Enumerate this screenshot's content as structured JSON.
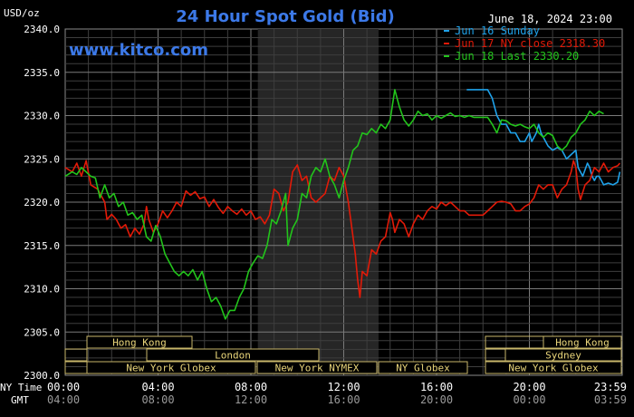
{
  "chart_data": {
    "type": "line",
    "title": "24 Hour Spot Gold (Bid)",
    "date_label": "June 18, 2024 23:00",
    "unit_label": "USD/oz",
    "watermark": "www.kitco.com",
    "ylim": [
      2300,
      2340
    ],
    "y_ticks": [
      "2300.0",
      "2305.0",
      "2310.0",
      "2315.0",
      "2320.0",
      "2325.0",
      "2330.0",
      "2335.0",
      "2340.0"
    ],
    "x_hours": [
      0,
      4,
      8,
      12,
      16,
      20,
      24
    ],
    "x_tick_labels": [
      "00:00",
      "04:00",
      "08:00",
      "12:00",
      "16:00",
      "20:00",
      "23:59"
    ],
    "gmt_tick_labels": [
      "04:00",
      "08:00",
      "12:00",
      "16:00",
      "20:00",
      "00:00",
      "03:59"
    ],
    "ny_time_label": "NY Time",
    "gmt_label": "GMT",
    "grid": true,
    "legend_position": "top-right",
    "shaded_window_hours": [
      8.3,
      13.5
    ],
    "series": [
      {
        "name": "Jun 16 Sunday",
        "color": "#1fa2ea",
        "points": [
          [
            17.3,
            2333
          ],
          [
            18.2,
            2333
          ],
          [
            18.4,
            2332
          ],
          [
            18.6,
            2330
          ],
          [
            18.8,
            2329
          ],
          [
            19.0,
            2329
          ],
          [
            19.2,
            2328
          ],
          [
            19.4,
            2328
          ],
          [
            19.6,
            2327
          ],
          [
            19.8,
            2327
          ],
          [
            20.0,
            2328
          ],
          [
            20.1,
            2327
          ],
          [
            20.3,
            2328
          ],
          [
            20.4,
            2329
          ],
          [
            20.5,
            2328
          ],
          [
            20.6,
            2327.5
          ],
          [
            20.8,
            2326.5
          ],
          [
            21.0,
            2326
          ],
          [
            21.2,
            2326.3
          ],
          [
            21.4,
            2326
          ],
          [
            21.6,
            2325
          ],
          [
            21.8,
            2325.5
          ],
          [
            22.0,
            2326
          ],
          [
            22.1,
            2324
          ],
          [
            22.3,
            2323
          ],
          [
            22.5,
            2324.5
          ],
          [
            22.6,
            2324
          ],
          [
            22.7,
            2323
          ],
          [
            22.8,
            2322.5
          ],
          [
            22.9,
            2323
          ],
          [
            23.0,
            2323
          ],
          [
            23.2,
            2322
          ],
          [
            23.4,
            2322.2
          ],
          [
            23.6,
            2322
          ],
          [
            23.8,
            2322.3
          ],
          [
            23.9,
            2323.5
          ]
        ]
      },
      {
        "name": "Jun 17 NY close 2318.30",
        "color": "#e21a08",
        "points": [
          [
            0.0,
            2324
          ],
          [
            0.3,
            2323.5
          ],
          [
            0.5,
            2324.5
          ],
          [
            0.7,
            2323
          ],
          [
            0.9,
            2324.8
          ],
          [
            1.1,
            2322
          ],
          [
            1.4,
            2321.5
          ],
          [
            1.7,
            2320
          ],
          [
            1.8,
            2318
          ],
          [
            2.0,
            2318.6
          ],
          [
            2.2,
            2318
          ],
          [
            2.4,
            2317
          ],
          [
            2.6,
            2317.4
          ],
          [
            2.8,
            2316
          ],
          [
            3.0,
            2317
          ],
          [
            3.2,
            2316.3
          ],
          [
            3.4,
            2317.5
          ],
          [
            3.5,
            2319.5
          ],
          [
            3.6,
            2318
          ],
          [
            3.8,
            2316.5
          ],
          [
            4.0,
            2317.5
          ],
          [
            4.2,
            2319
          ],
          [
            4.4,
            2318.2
          ],
          [
            4.6,
            2319
          ],
          [
            4.8,
            2320
          ],
          [
            5.0,
            2319.5
          ],
          [
            5.2,
            2321.3
          ],
          [
            5.4,
            2320.8
          ],
          [
            5.6,
            2321.2
          ],
          [
            5.8,
            2320.4
          ],
          [
            6.0,
            2320.6
          ],
          [
            6.2,
            2319.5
          ],
          [
            6.4,
            2320.3
          ],
          [
            6.6,
            2319.4
          ],
          [
            6.8,
            2318.7
          ],
          [
            7.0,
            2319.5
          ],
          [
            7.2,
            2319
          ],
          [
            7.4,
            2318.6
          ],
          [
            7.6,
            2319.2
          ],
          [
            7.8,
            2318.5
          ],
          [
            8.0,
            2319
          ],
          [
            8.2,
            2318
          ],
          [
            8.4,
            2318.3
          ],
          [
            8.6,
            2317.5
          ],
          [
            8.8,
            2318.5
          ],
          [
            9.0,
            2321.5
          ],
          [
            9.2,
            2321
          ],
          [
            9.4,
            2319
          ],
          [
            9.6,
            2320
          ],
          [
            9.8,
            2323.5
          ],
          [
            10.0,
            2324.3
          ],
          [
            10.2,
            2322.5
          ],
          [
            10.4,
            2323
          ],
          [
            10.6,
            2320.5
          ],
          [
            10.8,
            2320
          ],
          [
            11.0,
            2320.5
          ],
          [
            11.2,
            2321
          ],
          [
            11.4,
            2323
          ],
          [
            11.6,
            2322.5
          ],
          [
            11.8,
            2324
          ],
          [
            12.0,
            2323
          ],
          [
            12.2,
            2320
          ],
          [
            12.3,
            2318
          ],
          [
            12.5,
            2314
          ],
          [
            12.6,
            2311
          ],
          [
            12.7,
            2309
          ],
          [
            12.8,
            2312
          ],
          [
            13.0,
            2311.5
          ],
          [
            13.2,
            2314.5
          ],
          [
            13.4,
            2314
          ],
          [
            13.6,
            2315.5
          ],
          [
            13.8,
            2316
          ],
          [
            14.0,
            2318.8
          ],
          [
            14.1,
            2318
          ],
          [
            14.2,
            2316.5
          ],
          [
            14.4,
            2318
          ],
          [
            14.6,
            2317.5
          ],
          [
            14.8,
            2316
          ],
          [
            15.0,
            2317.5
          ],
          [
            15.2,
            2318.5
          ],
          [
            15.4,
            2318
          ],
          [
            15.6,
            2319
          ],
          [
            15.8,
            2319.5
          ],
          [
            16.0,
            2319.2
          ],
          [
            16.2,
            2320
          ],
          [
            16.4,
            2319.6
          ],
          [
            16.6,
            2320
          ],
          [
            16.8,
            2319.5
          ],
          [
            17.0,
            2319
          ],
          [
            17.2,
            2319
          ],
          [
            17.4,
            2318.5
          ],
          [
            17.6,
            2318.5
          ],
          [
            17.8,
            2318.5
          ],
          [
            18.0,
            2318.5
          ],
          [
            18.2,
            2319
          ],
          [
            18.4,
            2319.5
          ],
          [
            18.6,
            2320
          ],
          [
            18.8,
            2320.1
          ],
          [
            19.0,
            2320
          ],
          [
            19.2,
            2319.8
          ],
          [
            19.4,
            2319
          ],
          [
            19.6,
            2319
          ],
          [
            19.8,
            2319.5
          ],
          [
            20.0,
            2319.8
          ],
          [
            20.2,
            2320.5
          ],
          [
            20.4,
            2322
          ],
          [
            20.6,
            2321.5
          ],
          [
            20.8,
            2322
          ],
          [
            21.0,
            2322
          ],
          [
            21.2,
            2320.5
          ],
          [
            21.4,
            2321.5
          ],
          [
            21.6,
            2322
          ],
          [
            21.8,
            2323.5
          ],
          [
            21.9,
            2324.8
          ],
          [
            22.0,
            2324
          ],
          [
            22.1,
            2321.5
          ],
          [
            22.2,
            2320.3
          ],
          [
            22.4,
            2322
          ],
          [
            22.6,
            2322.5
          ],
          [
            22.8,
            2324
          ],
          [
            23.0,
            2323.5
          ],
          [
            23.2,
            2324.5
          ],
          [
            23.4,
            2323.5
          ],
          [
            23.6,
            2324
          ],
          [
            23.8,
            2324.2
          ],
          [
            23.9,
            2324.5
          ]
        ]
      },
      {
        "name": "Jun 18 Last 2330.20",
        "color": "#22c41b",
        "points": [
          [
            0.0,
            2323
          ],
          [
            0.3,
            2323.5
          ],
          [
            0.5,
            2323.2
          ],
          [
            0.7,
            2324
          ],
          [
            0.9,
            2323.5
          ],
          [
            1.1,
            2323
          ],
          [
            1.3,
            2322.8
          ],
          [
            1.5,
            2320.5
          ],
          [
            1.7,
            2322
          ],
          [
            1.9,
            2320.5
          ],
          [
            2.1,
            2321
          ],
          [
            2.3,
            2319.5
          ],
          [
            2.5,
            2320
          ],
          [
            2.7,
            2318.5
          ],
          [
            2.9,
            2318.8
          ],
          [
            3.1,
            2318
          ],
          [
            3.3,
            2318.5
          ],
          [
            3.5,
            2316
          ],
          [
            3.7,
            2315.5
          ],
          [
            3.9,
            2317.3
          ],
          [
            4.1,
            2316
          ],
          [
            4.3,
            2314
          ],
          [
            4.5,
            2313
          ],
          [
            4.7,
            2312
          ],
          [
            4.9,
            2311.5
          ],
          [
            5.1,
            2312
          ],
          [
            5.3,
            2311.5
          ],
          [
            5.5,
            2312.2
          ],
          [
            5.7,
            2311
          ],
          [
            5.9,
            2312
          ],
          [
            6.1,
            2310
          ],
          [
            6.3,
            2308.5
          ],
          [
            6.5,
            2309
          ],
          [
            6.7,
            2308
          ],
          [
            6.9,
            2306.5
          ],
          [
            7.1,
            2307.5
          ],
          [
            7.3,
            2307.5
          ],
          [
            7.5,
            2309
          ],
          [
            7.7,
            2310
          ],
          [
            7.9,
            2312
          ],
          [
            8.1,
            2313
          ],
          [
            8.3,
            2313.8
          ],
          [
            8.5,
            2313.5
          ],
          [
            8.7,
            2315
          ],
          [
            8.9,
            2318
          ],
          [
            9.1,
            2317.5
          ],
          [
            9.3,
            2319
          ],
          [
            9.5,
            2321
          ],
          [
            9.6,
            2315
          ],
          [
            9.8,
            2317
          ],
          [
            10.0,
            2318
          ],
          [
            10.2,
            2321
          ],
          [
            10.4,
            2320.5
          ],
          [
            10.6,
            2323
          ],
          [
            10.8,
            2324
          ],
          [
            11.0,
            2323.5
          ],
          [
            11.2,
            2325
          ],
          [
            11.4,
            2323
          ],
          [
            11.6,
            2322
          ],
          [
            11.8,
            2320.5
          ],
          [
            12.0,
            2322.5
          ],
          [
            12.2,
            2324
          ],
          [
            12.4,
            2326
          ],
          [
            12.6,
            2326.5
          ],
          [
            12.8,
            2328
          ],
          [
            13.0,
            2327.8
          ],
          [
            13.2,
            2328.5
          ],
          [
            13.4,
            2328
          ],
          [
            13.6,
            2329
          ],
          [
            13.8,
            2328.5
          ],
          [
            14.0,
            2329.5
          ],
          [
            14.2,
            2333
          ],
          [
            14.4,
            2331
          ],
          [
            14.6,
            2329.5
          ],
          [
            14.8,
            2328.8
          ],
          [
            15.0,
            2329.5
          ],
          [
            15.2,
            2330.5
          ],
          [
            15.4,
            2330
          ],
          [
            15.6,
            2330.2
          ],
          [
            15.8,
            2329.5
          ],
          [
            16.0,
            2330
          ],
          [
            16.2,
            2329.7
          ],
          [
            16.4,
            2330
          ],
          [
            16.6,
            2330.3
          ],
          [
            16.8,
            2329.9
          ],
          [
            17.0,
            2330
          ],
          [
            17.2,
            2329.8
          ],
          [
            17.4,
            2330
          ],
          [
            17.6,
            2329.8
          ],
          [
            17.8,
            2329.8
          ],
          [
            18.0,
            2329.8
          ],
          [
            18.2,
            2329.8
          ],
          [
            18.4,
            2329
          ],
          [
            18.6,
            2328
          ],
          [
            18.8,
            2329.5
          ],
          [
            19.0,
            2329.4
          ],
          [
            19.2,
            2329
          ],
          [
            19.4,
            2328.8
          ],
          [
            19.6,
            2329
          ],
          [
            19.8,
            2328.7
          ],
          [
            20.0,
            2328.5
          ],
          [
            20.2,
            2329
          ],
          [
            20.4,
            2328
          ],
          [
            20.6,
            2327.5
          ],
          [
            20.8,
            2328
          ],
          [
            21.0,
            2327.7
          ],
          [
            21.2,
            2326.5
          ],
          [
            21.4,
            2326
          ],
          [
            21.6,
            2326.5
          ],
          [
            21.8,
            2327.5
          ],
          [
            22.0,
            2328
          ],
          [
            22.2,
            2329
          ],
          [
            22.4,
            2329.5
          ],
          [
            22.6,
            2330.5
          ],
          [
            22.8,
            2330
          ],
          [
            23.0,
            2330.5
          ],
          [
            23.2,
            2330.2
          ]
        ]
      }
    ],
    "sessions": [
      {
        "label": "Hong Kong",
        "hours": [
          0,
          8
        ]
      },
      {
        "label": "London",
        "hours": [
          5,
          16
        ]
      },
      {
        "label": "New York Globex",
        "hours": [
          0,
          12
        ]
      },
      {
        "label": "New York NYMEX",
        "hours": [
          12,
          19.5
        ]
      },
      {
        "label": "NY Globex",
        "hours": [
          19.5,
          27
        ]
      },
      {
        "label": "Hong Kong",
        "hours": [
          19.5,
          27.3
        ]
      },
      {
        "label": "Sydney",
        "hours": [
          17.3,
          27
        ]
      },
      {
        "label": "New York Globex",
        "hours": [
          12,
          27.3
        ]
      }
    ]
  }
}
